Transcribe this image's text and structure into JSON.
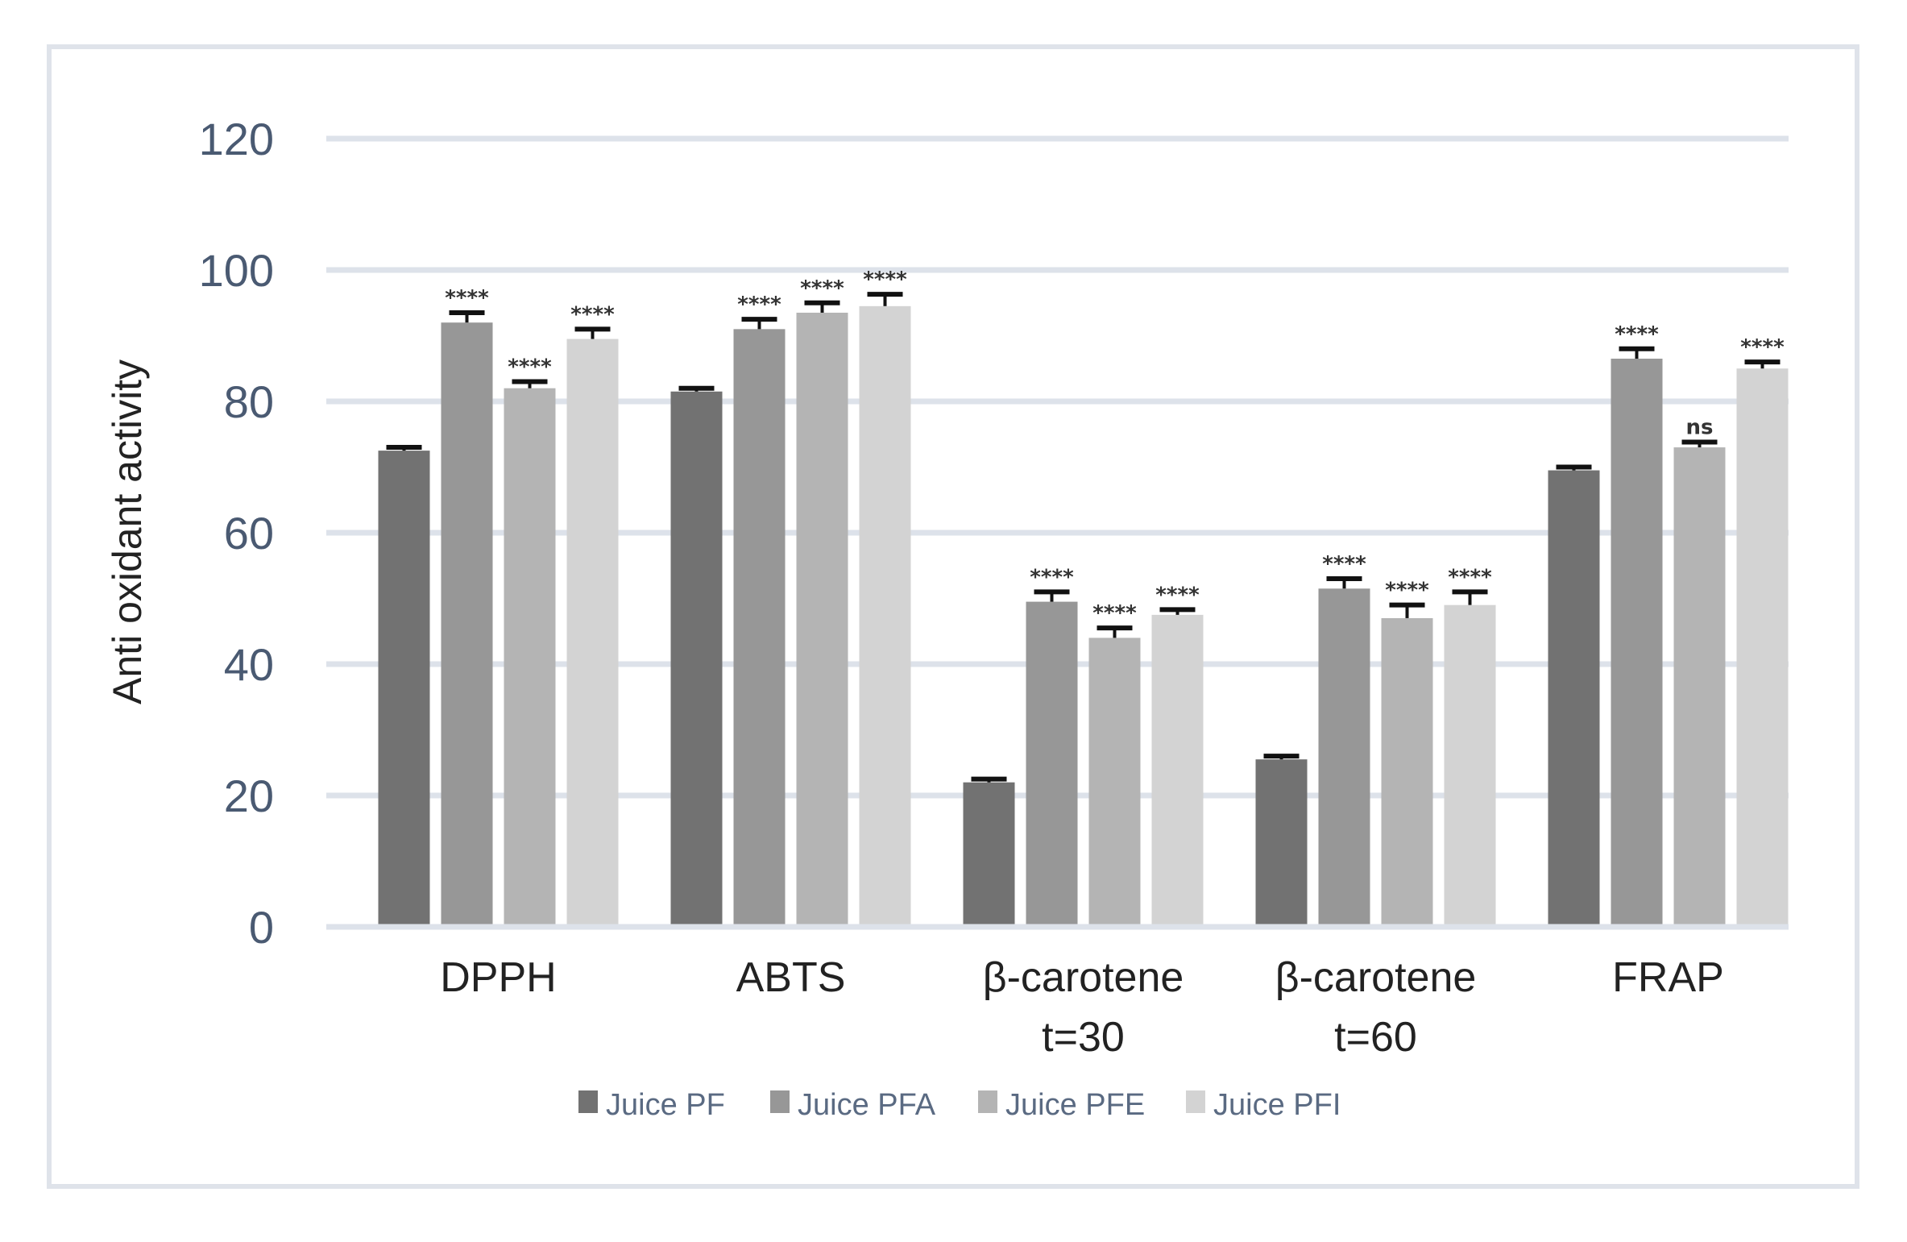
{
  "chart_data": {
    "type": "bar",
    "ylabel": "Anti oxidant activity",
    "xlabel": "",
    "ylim": [
      0,
      120
    ],
    "yticks": [
      0,
      20,
      40,
      60,
      80,
      100,
      120
    ],
    "grid": true,
    "legend_position": "bottom",
    "categories": [
      "DPPH",
      "ABTS",
      "β-carotene t=30",
      "β-carotene t=60",
      "FRAP"
    ],
    "category_lines": [
      [
        "DPPH"
      ],
      [
        "ABTS"
      ],
      [
        "β-carotene",
        "t=30"
      ],
      [
        "β-carotene",
        "t=60"
      ],
      [
        "FRAP"
      ]
    ],
    "series": [
      {
        "name": "Juice PF",
        "color": "#727272",
        "values": [
          72.5,
          81.5,
          22,
          25.5,
          69.5
        ],
        "errors": [
          0.5,
          0.5,
          0.5,
          0.5,
          0.5
        ],
        "significance": [
          "",
          "",
          "",
          "",
          ""
        ]
      },
      {
        "name": "Juice PFA",
        "color": "#979797",
        "values": [
          92,
          91,
          49.5,
          51.5,
          86.5
        ],
        "errors": [
          1.5,
          1.5,
          1.5,
          1.5,
          1.5
        ],
        "significance": [
          "****",
          "****",
          "****",
          "****",
          "****"
        ]
      },
      {
        "name": "Juice PFE",
        "color": "#b4b4b4",
        "values": [
          82,
          93.5,
          44,
          47,
          73
        ],
        "errors": [
          1.0,
          1.5,
          1.5,
          2.0,
          0.8
        ],
        "significance": [
          "****",
          "****",
          "****",
          "****",
          "ns"
        ]
      },
      {
        "name": "Juice PFI",
        "color": "#d3d3d3",
        "values": [
          89.5,
          94.5,
          47.5,
          49,
          85
        ],
        "errors": [
          1.5,
          1.8,
          0.8,
          2.0,
          1.0
        ],
        "significance": [
          "****",
          "****",
          "****",
          "****",
          "****"
        ]
      }
    ]
  }
}
